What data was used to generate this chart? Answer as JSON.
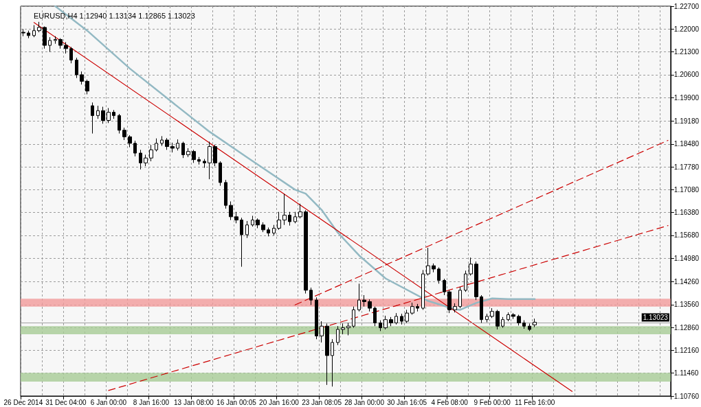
{
  "chart_data": {
    "type": "candlestick",
    "title": "EURUSD,H4 1.12940 1.13134 1.12865 1.13023",
    "categories": [
      "26 Dec 2014",
      null,
      null,
      null,
      null,
      null,
      null,
      null,
      "31 Dec 04:00",
      null,
      null,
      null,
      null,
      null,
      null,
      null,
      "6 Jan 00:00",
      null,
      null,
      null,
      null,
      null,
      null,
      null,
      "8 Jan 16:00",
      null,
      null,
      null,
      null,
      null,
      null,
      null,
      "13 Jan 08:00",
      null,
      null,
      null,
      null,
      null,
      null,
      null,
      "16 Jan 00:05",
      null,
      null,
      null,
      null,
      null,
      null,
      null,
      "20 Jan 16:00",
      null,
      null,
      null,
      null,
      null,
      null,
      null,
      "23 Jan 08:05",
      null,
      null,
      null,
      null,
      null,
      null,
      null,
      "28 Jan 00:00",
      null,
      null,
      null,
      null,
      null,
      null,
      null,
      "30 Jan 16:05",
      null,
      null,
      null,
      null,
      null,
      null,
      null,
      "4 Feb 08:00",
      null,
      null,
      null,
      null,
      null,
      null,
      null,
      "9 Feb 00:00",
      null,
      null,
      null,
      null,
      null,
      null,
      null,
      "11 Feb 16:00",
      null,
      null,
      null,
      null,
      null,
      null,
      null,
      null,
      null,
      null,
      null,
      null,
      null,
      null,
      null,
      null,
      null,
      null,
      null,
      null,
      null,
      null,
      null,
      null,
      null
    ],
    "ohlc": [
      [
        1.219,
        1.22,
        1.2178,
        1.2188
      ],
      [
        1.2188,
        1.2195,
        1.2172,
        1.218
      ],
      [
        1.218,
        1.2212,
        1.2175,
        1.2195
      ],
      [
        1.2195,
        1.2222,
        1.219,
        1.2205
      ],
      [
        1.2205,
        1.2208,
        1.214,
        1.215
      ],
      [
        1.215,
        1.2175,
        1.213,
        1.2165
      ],
      [
        1.2165,
        1.2178,
        1.2155,
        1.2168
      ],
      [
        1.2168,
        1.2172,
        1.214,
        1.215
      ],
      [
        1.215,
        1.216,
        1.2125,
        1.214
      ],
      [
        1.214,
        1.2145,
        1.2095,
        1.2105
      ],
      [
        1.2105,
        1.2112,
        1.205,
        1.206
      ],
      [
        1.206,
        1.207,
        1.203,
        1.204
      ],
      [
        1.204,
        1.2045,
        1.2,
        1.201
      ],
      [
        1.1965,
        1.1975,
        1.188,
        1.1935
      ],
      [
        1.1935,
        1.1965,
        1.1925,
        1.195
      ],
      [
        1.195,
        1.1962,
        1.191,
        1.192
      ],
      [
        1.192,
        1.1958,
        1.1912,
        1.1945
      ],
      [
        1.1945,
        1.1952,
        1.1925,
        1.1935
      ],
      [
        1.1935,
        1.194,
        1.188,
        1.189
      ],
      [
        1.189,
        1.1898,
        1.186,
        1.187
      ],
      [
        1.187,
        1.1875,
        1.1838,
        1.185
      ],
      [
        1.185,
        1.1858,
        1.181,
        1.182
      ],
      [
        1.182,
        1.183,
        1.177,
        1.179
      ],
      [
        1.179,
        1.1815,
        1.178,
        1.1805
      ],
      [
        1.1805,
        1.1845,
        1.1795,
        1.183
      ],
      [
        1.183,
        1.1865,
        1.1825,
        1.185
      ],
      [
        1.185,
        1.1872,
        1.1842,
        1.186
      ],
      [
        1.186,
        1.1866,
        1.183,
        1.184
      ],
      [
        1.184,
        1.1852,
        1.1822,
        1.1835
      ],
      [
        1.1835,
        1.1862,
        1.1828,
        1.185
      ],
      [
        1.185,
        1.1855,
        1.1805,
        1.1815
      ],
      [
        1.1815,
        1.1835,
        1.1808,
        1.1825
      ],
      [
        1.1825,
        1.183,
        1.179,
        1.18
      ],
      [
        1.18,
        1.1808,
        1.1785,
        1.1795
      ],
      [
        1.1795,
        1.1802,
        1.1775,
        1.179
      ],
      [
        1.179,
        1.1855,
        1.174,
        1.184
      ],
      [
        1.184,
        1.1845,
        1.178,
        1.179
      ],
      [
        1.179,
        1.1795,
        1.172,
        1.173
      ],
      [
        1.173,
        1.1738,
        1.165,
        1.166
      ],
      [
        1.166,
        1.1672,
        1.1615,
        1.1625
      ],
      [
        1.1625,
        1.164,
        1.1605,
        1.1615
      ],
      [
        1.1615,
        1.1622,
        1.1472,
        1.157
      ],
      [
        1.157,
        1.1612,
        1.156,
        1.16
      ],
      [
        1.16,
        1.1628,
        1.1595,
        1.1615
      ],
      [
        1.1615,
        1.162,
        1.159,
        1.16
      ],
      [
        1.16,
        1.1608,
        1.1578,
        1.1585
      ],
      [
        1.1585,
        1.1592,
        1.1565,
        1.1575
      ],
      [
        1.1575,
        1.16,
        1.1568,
        1.159
      ],
      [
        1.159,
        1.164,
        1.1585,
        1.1615
      ],
      [
        1.1615,
        1.1695,
        1.16,
        1.163
      ],
      [
        1.163,
        1.164,
        1.1598,
        1.161
      ],
      [
        1.161,
        1.164,
        1.1605,
        1.1625
      ],
      [
        1.1625,
        1.1665,
        1.162,
        1.164
      ],
      [
        1.164,
        1.1645,
        1.139,
        1.14
      ],
      [
        1.14,
        1.1408,
        1.1355,
        1.137
      ],
      [
        1.137,
        1.1378,
        1.125,
        1.126
      ],
      [
        1.126,
        1.1305,
        1.124,
        1.129
      ],
      [
        1.129,
        1.1298,
        1.111,
        1.12
      ],
      [
        1.12,
        1.125,
        1.1105,
        1.124
      ],
      [
        1.124,
        1.129,
        1.1232,
        1.128
      ],
      [
        1.128,
        1.1298,
        1.1265,
        1.1285
      ],
      [
        1.1285,
        1.13,
        1.1262,
        1.129
      ],
      [
        1.129,
        1.135,
        1.1285,
        1.134
      ],
      [
        1.134,
        1.142,
        1.1335,
        1.137
      ],
      [
        1.137,
        1.1385,
        1.135,
        1.1365
      ],
      [
        1.1365,
        1.1372,
        1.1335,
        1.1345
      ],
      [
        1.1345,
        1.135,
        1.129,
        1.13
      ],
      [
        1.13,
        1.1308,
        1.1275,
        1.1285
      ],
      [
        1.1285,
        1.1322,
        1.128,
        1.131
      ],
      [
        1.131,
        1.1318,
        1.129,
        1.13
      ],
      [
        1.13,
        1.133,
        1.1295,
        1.132
      ],
      [
        1.132,
        1.1328,
        1.1295,
        1.1305
      ],
      [
        1.1305,
        1.134,
        1.13,
        1.133
      ],
      [
        1.133,
        1.1362,
        1.1325,
        1.135
      ],
      [
        1.135,
        1.1358,
        1.1335,
        1.1345
      ],
      [
        1.1345,
        1.1462,
        1.134,
        1.145
      ],
      [
        1.145,
        1.153,
        1.1445,
        1.1475
      ],
      [
        1.1475,
        1.1482,
        1.1455,
        1.1465
      ],
      [
        1.1465,
        1.147,
        1.142,
        1.143
      ],
      [
        1.143,
        1.1435,
        1.1385,
        1.1395
      ],
      [
        1.1395,
        1.14,
        1.133,
        1.134
      ],
      [
        1.134,
        1.136,
        1.1332,
        1.135
      ],
      [
        1.135,
        1.141,
        1.1345,
        1.14
      ],
      [
        1.14,
        1.146,
        1.1395,
        1.145
      ],
      [
        1.145,
        1.15,
        1.1445,
        1.148
      ],
      [
        1.148,
        1.1488,
        1.137,
        1.138
      ],
      [
        1.138,
        1.1385,
        1.13,
        1.131
      ],
      [
        1.131,
        1.1328,
        1.1302,
        1.132
      ],
      [
        1.132,
        1.1345,
        1.1315,
        1.1335
      ],
      [
        1.1335,
        1.134,
        1.128,
        1.129
      ],
      [
        1.129,
        1.1318,
        1.1285,
        1.131
      ],
      [
        1.131,
        1.1332,
        1.1305,
        1.1325
      ],
      [
        1.1325,
        1.133,
        1.1312,
        1.132
      ],
      [
        1.132,
        1.1325,
        1.1292,
        1.13
      ],
      [
        1.13,
        1.1308,
        1.1282,
        1.129
      ],
      [
        1.129,
        1.1298,
        1.1275,
        1.128
      ],
      [
        1.1294,
        1.1313,
        1.1287,
        1.1302
      ],
      null,
      null,
      null,
      null,
      null,
      null,
      null,
      null,
      null,
      null,
      null,
      null,
      null,
      null,
      null,
      null,
      null,
      null,
      null,
      null,
      null,
      null,
      null,
      null,
      null
    ],
    "series": [
      {
        "type": "line",
        "color": "#93b9c3",
        "line_style": "solid",
        "values": [
          null,
          null,
          null,
          null,
          null,
          null,
          1.227,
          null,
          null,
          null,
          null,
          null,
          1.2195,
          null,
          null,
          null,
          null,
          null,
          null,
          null,
          1.2079,
          null,
          null,
          null,
          null,
          null,
          null,
          null,
          1.1975,
          null,
          null,
          null,
          null,
          null,
          null,
          1.1885,
          null,
          null,
          null,
          null,
          null,
          null,
          1.1807,
          null,
          null,
          null,
          null,
          null,
          null,
          null,
          null,
          1.1708,
          null,
          1.1696,
          null,
          null,
          1.1646,
          null,
          null,
          1.1577,
          null,
          null,
          null,
          1.1507,
          null,
          null,
          null,
          null,
          1.1436,
          null,
          null,
          null,
          null,
          null,
          null,
          null,
          1.1367,
          null,
          null,
          null,
          null,
          1.1342,
          1.134,
          null,
          null,
          1.1361,
          null,
          null,
          1.1375,
          null,
          null,
          1.1373,
          null,
          null,
          null,
          null,
          1.1373,
          null,
          null,
          null,
          null,
          null,
          null,
          null,
          null,
          null,
          null,
          null,
          null,
          null,
          null,
          null,
          null,
          null,
          null,
          null,
          null,
          null,
          null,
          null,
          null,
          null
        ]
      },
      {
        "type": "line",
        "color": "#cc0000",
        "line_style": "solid",
        "values": [
          null,
          null,
          1.222,
          null,
          null,
          null,
          null,
          null,
          null,
          null,
          null,
          null,
          null,
          null,
          null,
          null,
          null,
          null,
          null,
          null,
          null,
          null,
          null,
          null,
          null,
          null,
          null,
          null,
          null,
          null,
          null,
          null,
          null,
          null,
          null,
          null,
          null,
          null,
          null,
          null,
          null,
          null,
          null,
          null,
          null,
          null,
          null,
          null,
          null,
          null,
          null,
          null,
          null,
          null,
          null,
          null,
          null,
          null,
          null,
          null,
          null,
          null,
          null,
          null,
          null,
          null,
          null,
          null,
          null,
          null,
          null,
          null,
          null,
          null,
          null,
          null,
          null,
          null,
          null,
          null,
          null,
          null,
          null,
          null,
          null,
          null,
          null,
          null,
          null,
          null,
          null,
          null,
          null,
          null,
          null,
          null,
          null,
          null,
          null,
          null,
          null,
          null,
          null,
          1.109,
          null,
          null,
          null,
          null,
          null,
          null,
          null,
          null,
          null,
          null,
          null,
          null,
          null,
          null,
          null,
          null,
          null,
          null
        ]
      },
      {
        "type": "line",
        "color": "#cc0000",
        "line_style": "dashed",
        "values": [
          null,
          null,
          null,
          null,
          null,
          null,
          null,
          null,
          null,
          null,
          null,
          null,
          null,
          null,
          null,
          null,
          1.1093,
          null,
          null,
          null,
          null,
          null,
          null,
          null,
          null,
          null,
          null,
          null,
          null,
          null,
          null,
          null,
          null,
          null,
          null,
          null,
          null,
          null,
          null,
          null,
          null,
          null,
          null,
          null,
          null,
          null,
          null,
          null,
          null,
          null,
          null,
          null,
          null,
          null,
          null,
          null,
          null,
          null,
          null,
          null,
          null,
          null,
          null,
          null,
          null,
          null,
          null,
          null,
          null,
          null,
          null,
          null,
          null,
          null,
          null,
          null,
          null,
          null,
          null,
          null,
          null,
          null,
          null,
          null,
          null,
          null,
          null,
          null,
          null,
          null,
          null,
          null,
          null,
          null,
          null,
          null,
          null,
          null,
          null,
          null,
          null,
          null,
          null,
          null,
          null,
          null,
          null,
          null,
          null,
          null,
          null,
          null,
          null,
          null,
          null,
          null,
          null,
          null,
          null,
          null,
          null,
          1.1598
        ]
      },
      {
        "type": "line",
        "color": "#cc0000",
        "line_style": "dashed",
        "values": [
          null,
          null,
          null,
          null,
          null,
          null,
          null,
          null,
          null,
          null,
          null,
          null,
          null,
          null,
          null,
          null,
          null,
          null,
          null,
          null,
          null,
          null,
          null,
          null,
          null,
          null,
          null,
          null,
          null,
          null,
          null,
          null,
          null,
          null,
          null,
          null,
          null,
          null,
          null,
          null,
          null,
          null,
          null,
          null,
          null,
          null,
          null,
          null,
          null,
          null,
          null,
          1.1355,
          null,
          null,
          null,
          null,
          null,
          null,
          null,
          null,
          null,
          null,
          null,
          null,
          null,
          null,
          null,
          null,
          null,
          null,
          null,
          null,
          null,
          null,
          null,
          null,
          null,
          null,
          null,
          null,
          null,
          null,
          null,
          null,
          null,
          null,
          null,
          null,
          null,
          null,
          null,
          null,
          null,
          null,
          null,
          null,
          null,
          null,
          null,
          null,
          null,
          null,
          null,
          null,
          null,
          null,
          null,
          null,
          null,
          null,
          null,
          null,
          null,
          null,
          null,
          null,
          null,
          null,
          null,
          null,
          null,
          1.1859
        ]
      }
    ],
    "ylim": [
      1.1076,
      1.227
    ],
    "yticks": [
      {
        "value": 1.1076,
        "label": "1.10760"
      },
      {
        "value": 1.1146,
        "label": "1.11460"
      },
      {
        "value": 1.1216,
        "label": "1.12160"
      },
      {
        "value": 1.1286,
        "label": "1.12860"
      },
      {
        "value": 1.1356,
        "label": "1.13560"
      },
      {
        "value": 1.1426,
        "label": "1.14260"
      },
      {
        "value": 1.1498,
        "label": "1.14980"
      },
      {
        "value": 1.1568,
        "label": "1.15680"
      },
      {
        "value": 1.1638,
        "label": "1.16380"
      },
      {
        "value": 1.1708,
        "label": "1.17080"
      },
      {
        "value": 1.1778,
        "label": "1.17780"
      },
      {
        "value": 1.1848,
        "label": "1.18480"
      },
      {
        "value": 1.1918,
        "label": "1.19180"
      },
      {
        "value": 1.199,
        "label": "1.19900"
      },
      {
        "value": 1.206,
        "label": "1.20600"
      },
      {
        "value": 1.213,
        "label": "1.21300"
      },
      {
        "value": 1.22,
        "label": "1.22000"
      },
      {
        "value": 1.227,
        "label": "1.22700"
      }
    ],
    "ref_lines": [
      {
        "axis": "y",
        "value": 1.13023,
        "label": "1.13023",
        "color": "#a0a0a0"
      }
    ],
    "bands": [
      {
        "axis": "y",
        "from": 1.135,
        "to": 1.1374,
        "color": "#f19a9a"
      },
      {
        "axis": "y",
        "from": 1.1265,
        "to": 1.129,
        "color": "#a6cb95"
      },
      {
        "axis": "y",
        "from": 1.112,
        "to": 1.1147,
        "color": "#a6cb95"
      }
    ],
    "grid": true
  }
}
